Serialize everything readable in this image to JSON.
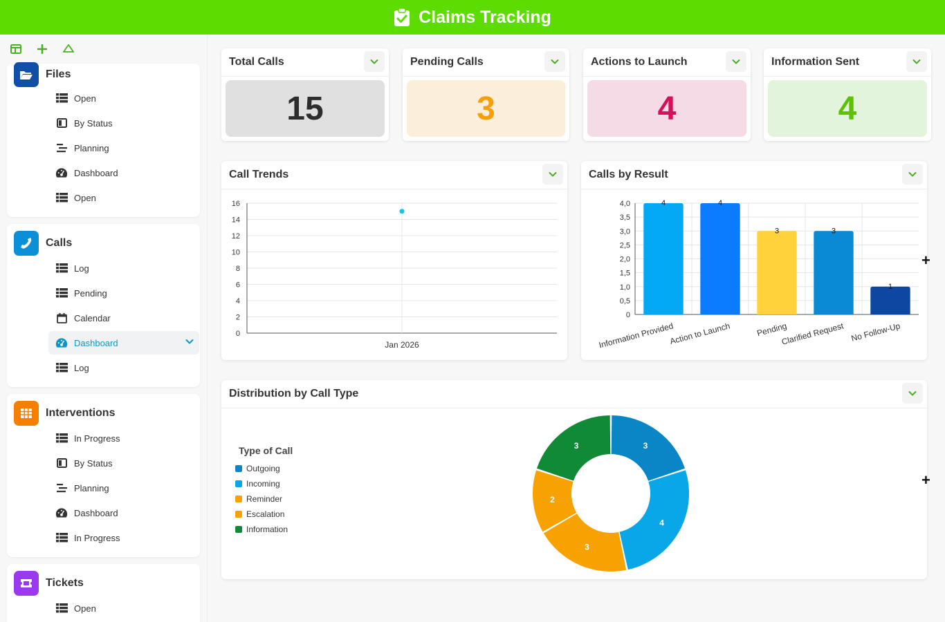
{
  "header": {
    "title": "Claims Tracking",
    "icon": "clipboard-check-icon"
  },
  "toolbar": {
    "tools": [
      "layout-icon",
      "plus-icon",
      "recycle-icon"
    ]
  },
  "sidebar": {
    "files": {
      "title": "Files",
      "items": [
        "Open",
        "By Status",
        "Planning",
        "Dashboard",
        "Open"
      ]
    },
    "calls": {
      "title": "Calls",
      "items": [
        "Log",
        "Pending",
        "Calendar",
        "Dashboard",
        "Log"
      ]
    },
    "interventions": {
      "title": "Interventions",
      "items": [
        "In Progress",
        "By Status",
        "Planning",
        "Dashboard",
        "In Progress"
      ]
    },
    "tickets": {
      "title": "Tickets",
      "items": [
        "Open"
      ]
    }
  },
  "kpis": [
    {
      "title": "Total Calls",
      "value": "15",
      "bg": "#e0e0e0",
      "color": "#2d2d2d"
    },
    {
      "title": "Pending Calls",
      "value": "3",
      "bg": "#fbeedb",
      "color": "#f5a00a"
    },
    {
      "title": "Actions to Launch",
      "value": "4",
      "bg": "#f4dbe5",
      "color": "#d6115c"
    },
    {
      "title": "Information Sent",
      "value": "4",
      "bg": "#e2f4dc",
      "color": "#5cc200"
    }
  ],
  "panels": {
    "trends": "Call Trends",
    "results": "Calls by Result",
    "distribution": "Distribution by Call Type"
  },
  "colors": {
    "accent": "#5cdc00",
    "active": "#0b96c9"
  },
  "chart_data": [
    {
      "type": "line",
      "x": [
        "Jan 2026"
      ],
      "series": [
        {
          "values": [
            15
          ]
        }
      ],
      "y_ticks": [
        "0",
        "2",
        "4",
        "6",
        "8",
        "10",
        "12",
        "14",
        "16"
      ],
      "ylim": [
        0,
        16
      ],
      "grid": true
    },
    {
      "type": "bar",
      "categories": [
        "Information Provided",
        "Action to Launch",
        "Pending",
        "Clarified Request",
        "No Follow-Up"
      ],
      "values": [
        4,
        4,
        3,
        3,
        1
      ],
      "data_labels": [
        "4",
        "4",
        "3",
        "3",
        "1"
      ],
      "bar_colors": [
        "#03a9f4",
        "#0a7cff",
        "#ffd23b",
        "#0a8ad4",
        "#0d47a1"
      ],
      "y_ticks": [
        "0",
        "0,5",
        "1,0",
        "1,5",
        "2,0",
        "2,5",
        "3,0",
        "3,5",
        "4,0"
      ],
      "ylim": [
        0,
        4
      ],
      "grid": true
    },
    {
      "type": "pie",
      "legend_title": "Type of Call",
      "legend_position": "left",
      "labels": [
        "Outgoing",
        "Incoming",
        "Reminder",
        "Escalation",
        "Information"
      ],
      "values": [
        3,
        4,
        3,
        2,
        3
      ],
      "colors": [
        "#0a86c6",
        "#09a7e8",
        "#f7a200",
        "#f7a200",
        "#108a36"
      ]
    }
  ]
}
